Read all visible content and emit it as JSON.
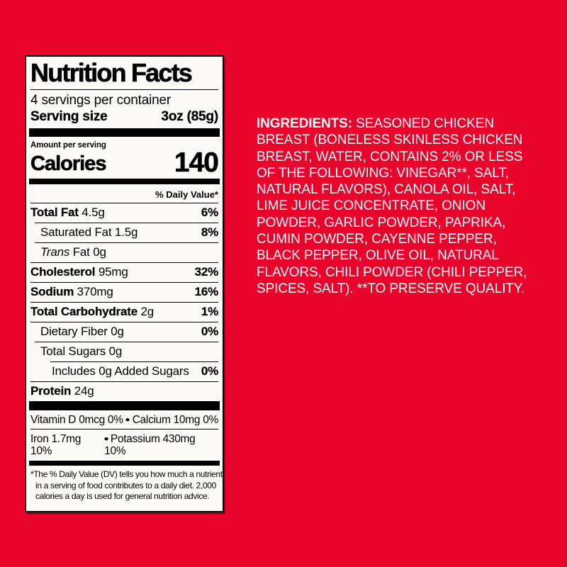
{
  "colors": {
    "background_red": "#E8042B",
    "label_background": "#FBFAF6",
    "label_text": "#000000",
    "ingredients_text": "#FFFFFF"
  },
  "label": {
    "title": "Nutrition Facts",
    "servings_per_container": "4 servings per container",
    "serving_size_label": "Serving size",
    "serving_size_value": "3oz (85g)",
    "amount_per_serving": "Amount per serving",
    "calories_label": "Calories",
    "calories_value": "140",
    "daily_value_header": "% Daily Value*",
    "bullet": "●",
    "rows": [
      {
        "bold_text": "Total Fat",
        "text": " 4.5g",
        "dv": "6%"
      },
      {
        "text": "Saturated Fat 1.5g",
        "dv": "8%"
      },
      {
        "italic_text": "Trans",
        "text": " Fat 0g",
        "dv": ""
      },
      {
        "bold_text": "Cholesterol",
        "text": " 95mg",
        "dv": "32%"
      },
      {
        "bold_text": "Sodium",
        "text": " 370mg",
        "dv": "16%"
      },
      {
        "bold_text": "Total Carbohydrate",
        "text": " 2g",
        "dv": "1%"
      },
      {
        "text": "Dietary Fiber 0g",
        "dv": "0%"
      },
      {
        "text": "Total Sugars 0g",
        "dv": ""
      },
      {
        "text": "Includes 0g Added Sugars",
        "dv": "0%"
      },
      {
        "bold_text": "Protein",
        "text": " 24g",
        "dv": ""
      }
    ],
    "micronutrients": [
      {
        "left": "Vitamin D 0mcg 0%",
        "right": "Calcium 10mg 0%"
      },
      {
        "left": "Iron 1.7mg 10%",
        "right": "Potassium 430mg 10%"
      }
    ],
    "footnote_lines": [
      "*The % Daily Value (DV) tells you how much a nutrient",
      "in a serving of food contributes to a daily diet. 2,000",
      "calories a day is used for general nutrition advice."
    ]
  },
  "ingredients": {
    "heading": "INGREDIENTS:",
    "line1_rest": "SEASONED CHICKEN",
    "lines": [
      "BREAST (BONELESS SKINLESS CHICKEN",
      "BREAST, WATER, CONTAINS 2% OR LESS",
      "OF THE FOLLOWING: VINEGAR**, SALT,",
      "NATURAL FLAVORS), CANOLA OIL, SALT,",
      "LIME JUICE CONCENTRATE, ONION",
      "POWDER, GARLIC POWDER, PAPRIKA,",
      "CUMIN POWDER, CAYENNE PEPPER,",
      "BLACK PEPPER, OLIVE OIL, NATURAL",
      "FLAVORS, CHILI POWDER (CHILI PEPPER,",
      "SPICES, SALT). **TO PRESERVE QUALITY."
    ]
  }
}
